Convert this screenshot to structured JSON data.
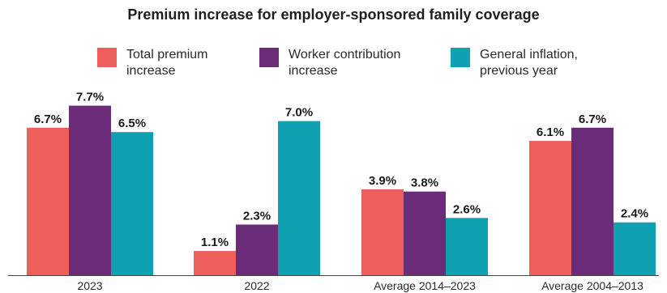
{
  "chart_data": {
    "type": "bar",
    "title": "Premium increase for employer-sponsored family coverage",
    "categories": [
      "2023",
      "2022",
      "Average 2014–2023",
      "Average 2004–2013"
    ],
    "series": [
      {
        "name": "Total premium increase",
        "color": "#EE5F5B",
        "values": [
          6.7,
          1.1,
          3.9,
          6.1
        ],
        "labels": [
          "6.7%",
          "1.1%",
          "3.9%",
          "6.1%"
        ]
      },
      {
        "name": "Worker contribution increase",
        "color": "#6A2C78",
        "values": [
          7.7,
          2.3,
          3.8,
          6.7
        ],
        "labels": [
          "7.7%",
          "2.3%",
          "3.8%",
          "6.7%"
        ]
      },
      {
        "name": "General inflation, previous year",
        "color": "#0FA0B2",
        "values": [
          6.5,
          7.0,
          2.6,
          2.4
        ],
        "labels": [
          "6.5%",
          "7.0%",
          "2.6%",
          "2.4%"
        ]
      }
    ],
    "legend": [
      {
        "line1": "Total premium",
        "line2": "increase"
      },
      {
        "line1": "Worker contribution",
        "line2": "increase"
      },
      {
        "line1": "General inflation,",
        "line2": "previous year"
      }
    ],
    "ylim": [
      0,
      8
    ],
    "grid": false,
    "legend_position": "top"
  }
}
